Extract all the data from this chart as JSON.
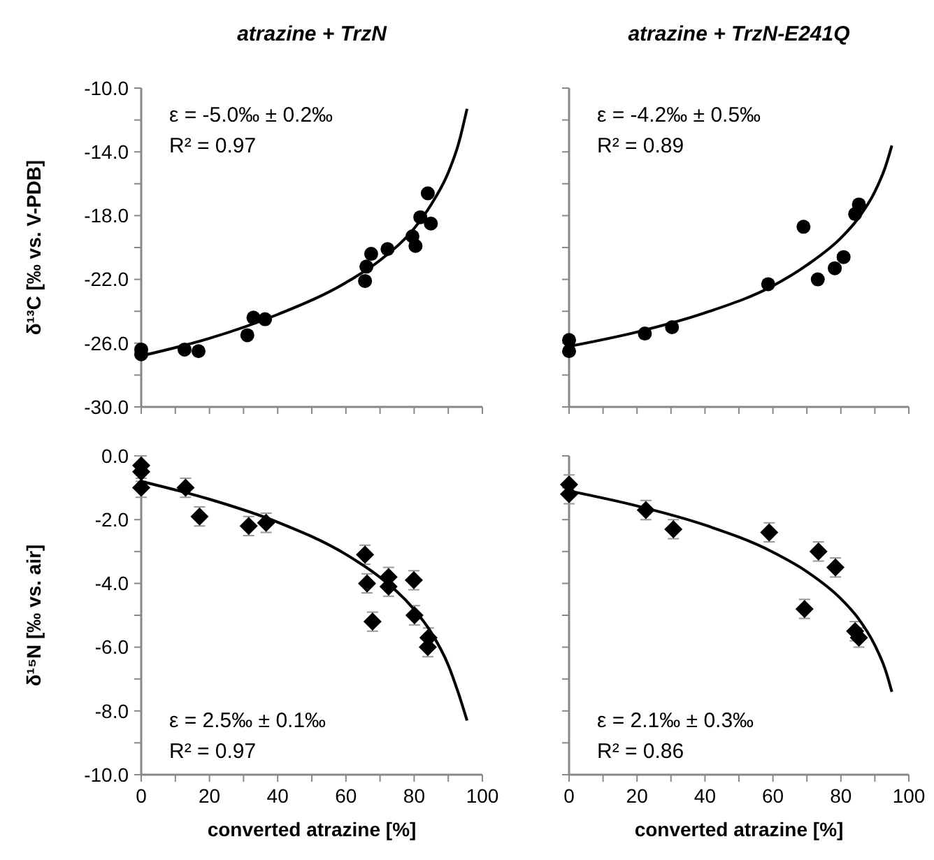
{
  "chart_data": [
    {
      "type": "scatter",
      "title": "atrazine + TrzN",
      "ylabel": "δ¹³C [‰ vs. V-PDB]",
      "tick_labels": "y",
      "grid": false,
      "xlim": [
        0,
        100
      ],
      "xticks": [
        {
          "value": 0,
          "label": null
        },
        {
          "value": 10,
          "label": null
        },
        {
          "value": 20,
          "label": null
        },
        {
          "value": 30,
          "label": null
        },
        {
          "value": 40,
          "label": null
        },
        {
          "value": 50,
          "label": null
        },
        {
          "value": 60,
          "label": null
        },
        {
          "value": 70,
          "label": null
        },
        {
          "value": 80,
          "label": null
        },
        {
          "value": 90,
          "label": null
        },
        {
          "value": 100,
          "label": null
        }
      ],
      "ylim": [
        -30,
        -10
      ],
      "yticks": [
        {
          "value": -10,
          "label": "-10.0"
        },
        {
          "value": -12,
          "label": null
        },
        {
          "value": -14,
          "label": "-14.0"
        },
        {
          "value": -16,
          "label": null
        },
        {
          "value": -18,
          "label": "-18.0"
        },
        {
          "value": -20,
          "label": null
        },
        {
          "value": -22,
          "label": "-22.0"
        },
        {
          "value": -24,
          "label": null
        },
        {
          "value": -26,
          "label": "-26.0"
        },
        {
          "value": -28,
          "label": null
        },
        {
          "value": -30,
          "label": "-30.0"
        }
      ],
      "annotations": [
        "ε = -5.0‰ ± 0.2‰",
        "R² = 0.97"
      ],
      "series": [
        {
          "marker": "circle",
          "color": "#000000",
          "x": [
            0,
            0,
            12.7,
            16.8,
            31.1,
            32.9,
            36.3,
            65.6,
            66.0,
            67.4,
            72.2,
            79.5,
            80.4,
            81.8,
            84.9,
            84.0
          ],
          "values": [
            -26.4,
            -26.7,
            -26.4,
            -26.5,
            -25.5,
            -24.4,
            -24.5,
            -22.1,
            -21.2,
            -20.4,
            -20.1,
            -19.3,
            -19.9,
            -18.1,
            -18.5,
            -16.6
          ]
        },
        {
          "type": "line",
          "color": "#000000",
          "x": [
            0,
            20,
            40,
            60,
            70,
            80,
            85,
            90,
            93,
            95.5
          ],
          "values": [
            -26.8,
            -25.7,
            -24.2,
            -22.2,
            -20.8,
            -18.8,
            -17.3,
            -15.3,
            -13.5,
            -11.3
          ]
        }
      ]
    },
    {
      "type": "scatter",
      "title": "atrazine + TrzN-E241Q",
      "tick_labels": false,
      "grid": false,
      "xlim": [
        0,
        100
      ],
      "xticks": [
        {
          "value": 0,
          "label": null
        },
        {
          "value": 10,
          "label": null
        },
        {
          "value": 20,
          "label": null
        },
        {
          "value": 30,
          "label": null
        },
        {
          "value": 40,
          "label": null
        },
        {
          "value": 50,
          "label": null
        },
        {
          "value": 60,
          "label": null
        },
        {
          "value": 70,
          "label": null
        },
        {
          "value": 80,
          "label": null
        },
        {
          "value": 90,
          "label": null
        },
        {
          "value": 100,
          "label": null
        }
      ],
      "ylim": [
        -30,
        -10
      ],
      "yticks": [
        {
          "value": -10,
          "label": null
        },
        {
          "value": -12,
          "label": null
        },
        {
          "value": -14,
          "label": null
        },
        {
          "value": -16,
          "label": null
        },
        {
          "value": -18,
          "label": null
        },
        {
          "value": -20,
          "label": null
        },
        {
          "value": -22,
          "label": null
        },
        {
          "value": -24,
          "label": null
        },
        {
          "value": -26,
          "label": null
        },
        {
          "value": -28,
          "label": null
        },
        {
          "value": -30,
          "label": null
        }
      ],
      "annotations": [
        "ε = -4.2‰ ± 0.5‰",
        "R² = 0.89"
      ],
      "series": [
        {
          "marker": "circle",
          "color": "#000000",
          "x": [
            0,
            0,
            22.3,
            30.3,
            58.6,
            69.0,
            73.2,
            78.2,
            80.8,
            84.2,
            85.3
          ],
          "values": [
            -25.8,
            -26.5,
            -25.4,
            -25.0,
            -22.3,
            -18.7,
            -22.0,
            -21.3,
            -20.6,
            -17.9,
            -17.3
          ]
        },
        {
          "type": "line",
          "color": "#000000",
          "x": [
            0,
            20,
            40,
            60,
            70,
            80,
            85,
            90,
            93,
            95
          ],
          "values": [
            -26.2,
            -25.3,
            -24.1,
            -22.4,
            -21.1,
            -19.4,
            -18.2,
            -16.5,
            -15.0,
            -13.6
          ]
        }
      ]
    },
    {
      "type": "scatter",
      "ylabel": "δ¹⁵N [‰ vs. air]",
      "xlabel": "converted atrazine [%]",
      "grid": false,
      "xlim": [
        0,
        100
      ],
      "xticks": [
        0,
        {
          "value": 10,
          "label": null
        },
        20,
        {
          "value": 30,
          "label": null
        },
        40,
        {
          "value": 50,
          "label": null
        },
        60,
        {
          "value": 70,
          "label": null
        },
        80,
        {
          "value": 90,
          "label": null
        },
        100
      ],
      "ylim": [
        -10,
        0
      ],
      "yticks": [
        {
          "value": 0,
          "label": "0.0"
        },
        {
          "value": -1,
          "label": null
        },
        {
          "value": -2,
          "label": "-2.0"
        },
        {
          "value": -3,
          "label": null
        },
        {
          "value": -4,
          "label": "-4.0"
        },
        {
          "value": -5,
          "label": null
        },
        {
          "value": -6,
          "label": "-6.0"
        },
        {
          "value": -7,
          "label": null
        },
        {
          "value": -8,
          "label": "-8.0"
        },
        {
          "value": -9,
          "label": null
        },
        {
          "value": -10,
          "label": "-10.0"
        }
      ],
      "annotations": [
        "ε = 2.5‰ ± 0.1‰",
        "R² = 0.97"
      ],
      "series": [
        {
          "marker": "diamond",
          "color": "#000000",
          "x": [
            0,
            0,
            0,
            13.0,
            17.1,
            31.5,
            36.6,
            65.6,
            66.2,
            67.8,
            72.5,
            72.5,
            79.9,
            80.1,
            84.2,
            84.0
          ],
          "values": [
            -0.3,
            -0.5,
            -1.0,
            -1.0,
            -1.9,
            -2.2,
            -2.1,
            -3.1,
            -4.0,
            -5.2,
            -3.8,
            -4.1,
            -3.9,
            -5.0,
            -5.7,
            -6.0
          ],
          "errors": [
            0.3,
            0.3,
            0.3,
            0.3,
            0.3,
            0.3,
            0.3,
            0.3,
            0.3,
            0.3,
            0.3,
            0.3,
            0.3,
            0.3,
            0.3,
            0.3
          ]
        },
        {
          "type": "line",
          "color": "#000000",
          "x": [
            0,
            20,
            40,
            60,
            70,
            80,
            85,
            90,
            93,
            95.5
          ],
          "values": [
            -0.8,
            -1.36,
            -2.08,
            -3.09,
            -3.81,
            -4.82,
            -5.54,
            -6.56,
            -7.45,
            -8.3
          ]
        }
      ]
    },
    {
      "type": "scatter",
      "xlabel": "converted atrazine [%]",
      "tick_labels": "x",
      "grid": false,
      "xlim": [
        0,
        100
      ],
      "xticks": [
        0,
        {
          "value": 10,
          "label": null
        },
        20,
        {
          "value": 30,
          "label": null
        },
        40,
        {
          "value": 50,
          "label": null
        },
        60,
        {
          "value": 70,
          "label": null
        },
        80,
        {
          "value": 90,
          "label": null
        },
        100
      ],
      "ylim": [
        -10,
        0
      ],
      "yticks": [
        {
          "value": 0,
          "label": null
        },
        {
          "value": -1,
          "label": null
        },
        {
          "value": -2,
          "label": null
        },
        {
          "value": -3,
          "label": null
        },
        {
          "value": -4,
          "label": null
        },
        {
          "value": -5,
          "label": null
        },
        {
          "value": -6,
          "label": null
        },
        {
          "value": -7,
          "label": null
        },
        {
          "value": -8,
          "label": null
        },
        {
          "value": -9,
          "label": null
        },
        {
          "value": -10,
          "label": null
        }
      ],
      "annotations": [
        "ε = 2.1‰ ± 0.3‰",
        "R² = 0.86"
      ],
      "series": [
        {
          "marker": "diamond",
          "color": "#000000",
          "x": [
            0,
            0,
            22.6,
            30.7,
            58.9,
            69.3,
            73.4,
            78.4,
            84.2,
            85.3
          ],
          "values": [
            -0.9,
            -1.2,
            -1.7,
            -2.3,
            -2.4,
            -4.8,
            -3.0,
            -3.5,
            -5.5,
            -5.7
          ],
          "errors": [
            0.3,
            0.3,
            0.3,
            0.3,
            0.3,
            0.3,
            0.3,
            0.3,
            0.3,
            0.3
          ]
        },
        {
          "type": "line",
          "color": "#000000",
          "x": [
            0,
            20,
            40,
            60,
            70,
            80,
            85,
            90,
            93,
            95
          ],
          "values": [
            -1.1,
            -1.57,
            -2.17,
            -3.02,
            -3.63,
            -4.48,
            -5.08,
            -5.94,
            -6.68,
            -7.4
          ]
        }
      ]
    }
  ]
}
